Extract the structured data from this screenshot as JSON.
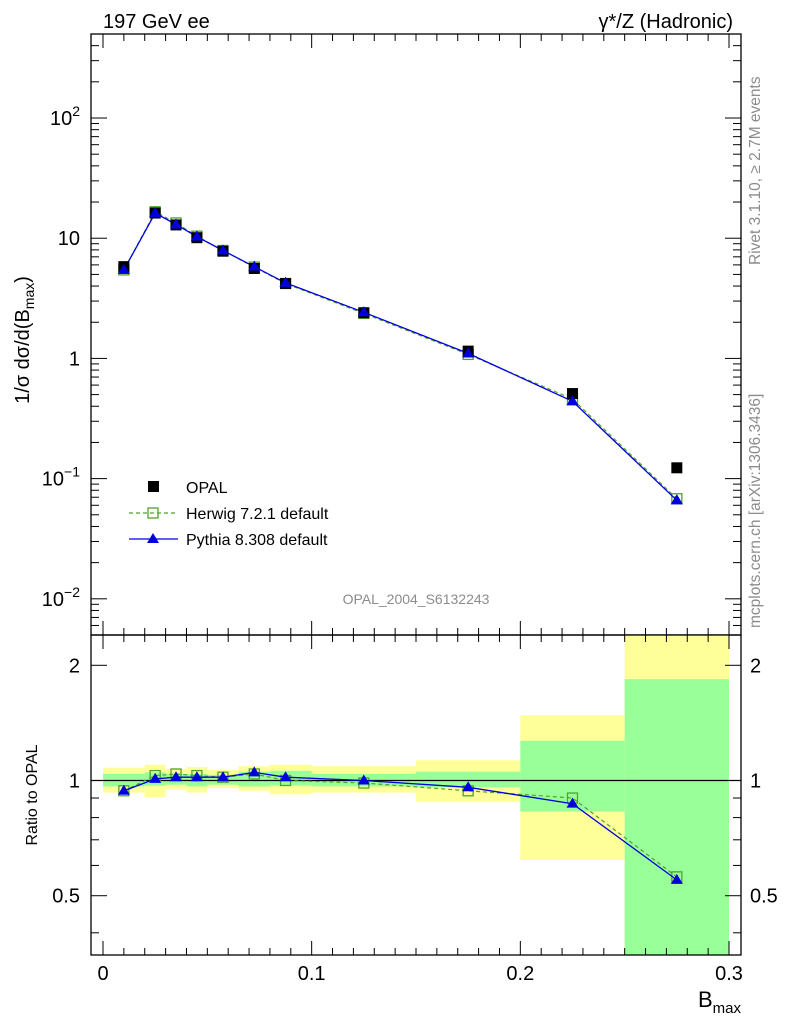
{
  "header": {
    "left_title": "197 GeV ee",
    "right_title": "γ*/Z (Hadronic)"
  },
  "side_labels": {
    "rivet": "Rivet 3.1.10, ≥ 2.7M events",
    "mcplots": "mcplots.cern.ch [arXiv:1306.3436]"
  },
  "analysis_label": "OPAL_2004_S6132243",
  "colors": {
    "opal": "#000000",
    "herwig": "#4fa32b",
    "pythia": "#0000dd",
    "band_inner": "#99ff99",
    "band_outer": "#ffff99"
  },
  "chart_data": [
    {
      "type": "scatter",
      "scale": "log",
      "ylabel_main": "1/σ dσ/d(B",
      "ylabel_sub": "max",
      "ylabel_close": ")",
      "xlim": [
        0,
        0.3
      ],
      "ylim": [
        0.005,
        500
      ],
      "yticks": [
        {
          "value": 0.01,
          "base": "10",
          "exp": "−2"
        },
        {
          "value": 0.1,
          "base": "10",
          "exp": "−1"
        },
        {
          "value": 1,
          "base": "1",
          "exp": ""
        },
        {
          "value": 10,
          "base": "10",
          "exp": ""
        },
        {
          "value": 100,
          "base": "10",
          "exp": "2"
        }
      ],
      "x": [
        0.01,
        0.025,
        0.035,
        0.045,
        0.0575,
        0.0725,
        0.0875,
        0.125,
        0.175,
        0.225,
        0.275
      ],
      "bin_edges": [
        0.0,
        0.02,
        0.03,
        0.04,
        0.05,
        0.065,
        0.08,
        0.1,
        0.15,
        0.2,
        0.25,
        0.3
      ],
      "series": [
        {
          "name": "OPAL",
          "marker": "square",
          "values": [
            5.8,
            16.2,
            12.9,
            10.1,
            7.8,
            5.6,
            4.2,
            2.4,
            1.15,
            0.51,
            0.123
          ]
        },
        {
          "name": "Herwig 7.2.1 default",
          "marker": "open-square",
          "values": [
            5.45,
            16.6,
            13.4,
            10.4,
            7.9,
            5.75,
            4.2,
            2.37,
            1.08,
            0.46,
            0.068
          ]
        },
        {
          "name": "Pythia 8.308 default",
          "marker": "triangle",
          "values": [
            5.45,
            16.2,
            13.0,
            10.3,
            7.9,
            5.8,
            4.25,
            2.42,
            1.1,
            0.44,
            0.066
          ]
        }
      ],
      "legend_position": "lower-left"
    },
    {
      "type": "scatter",
      "scale": "log",
      "ylabel": "Ratio to OPAL",
      "xlabel_main": "B",
      "xlabel_sub": "max",
      "xlim": [
        0,
        0.3
      ],
      "ylim": [
        0.35,
        2.4
      ],
      "xticks": [
        "0",
        "0.1",
        "0.2",
        "0.3"
      ],
      "xtick_values": [
        0,
        0.1,
        0.2,
        0.3
      ],
      "yticks": [
        "0.5",
        "1",
        "2"
      ],
      "ytick_values": [
        0.5,
        1,
        2
      ],
      "x": [
        0.01,
        0.025,
        0.035,
        0.045,
        0.0575,
        0.0725,
        0.0875,
        0.125,
        0.175,
        0.225,
        0.275
      ],
      "bands": {
        "inner": [
          [
            0.965,
            1.04
          ],
          [
            0.97,
            1.05
          ],
          [
            0.975,
            1.04
          ],
          [
            0.965,
            1.04
          ],
          [
            0.975,
            1.035
          ],
          [
            0.965,
            1.055
          ],
          [
            0.97,
            1.06
          ],
          [
            0.965,
            1.04
          ],
          [
            0.96,
            1.055
          ],
          [
            0.83,
            1.27
          ],
          [
            0.34,
            1.84
          ]
        ],
        "outer": [
          [
            0.93,
            1.08
          ],
          [
            0.905,
            1.1
          ],
          [
            0.945,
            1.07
          ],
          [
            0.93,
            1.085
          ],
          [
            0.955,
            1.065
          ],
          [
            0.94,
            1.09
          ],
          [
            0.92,
            1.1
          ],
          [
            0.93,
            1.09
          ],
          [
            0.88,
            1.13
          ],
          [
            0.62,
            1.48
          ],
          [
            0.34,
            2.4
          ]
        ]
      },
      "series": [
        {
          "name": "Herwig 7.2.1 default",
          "values": [
            0.94,
            1.03,
            1.04,
            1.03,
            1.02,
            1.04,
            1.0,
            0.985,
            0.94,
            0.9,
            0.56
          ]
        },
        {
          "name": "Pythia 8.308 default",
          "values": [
            0.94,
            1.01,
            1.02,
            1.02,
            1.02,
            1.05,
            1.02,
            1.0,
            0.96,
            0.87,
            0.55
          ]
        }
      ]
    }
  ]
}
